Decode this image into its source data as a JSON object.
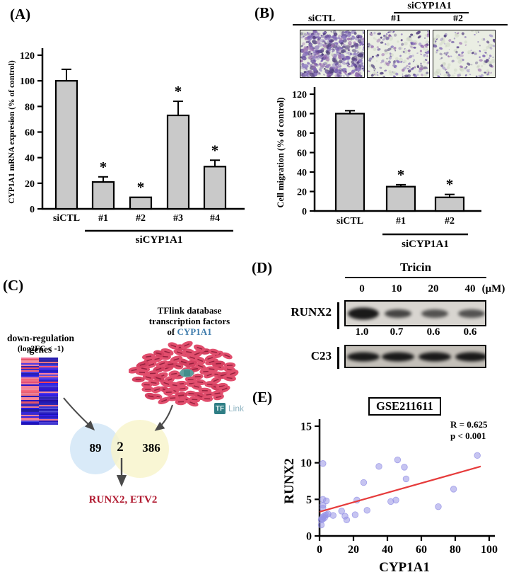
{
  "figure": {
    "panel_a": {
      "tag": "(A)",
      "chart_data": {
        "type": "bar",
        "categories": [
          "siCTL",
          "#1",
          "#2",
          "#3",
          "#4"
        ],
        "values": [
          100,
          21,
          9,
          73,
          33
        ],
        "errors": [
          9,
          4,
          0,
          11,
          5
        ],
        "significance": [
          "",
          "*",
          "*",
          "*",
          "*"
        ],
        "ylabel": "CYP1A1 mRNA expresion (% of control)",
        "ylim": [
          0,
          120
        ],
        "ytick_step": 20,
        "group_label": "siCYP1A1",
        "group_span": [
          1,
          4
        ],
        "bar_color": "#c9c9c9"
      }
    },
    "panel_b": {
      "tag": "(B)",
      "migration_images": {
        "group_label": "siCYP1A1",
        "columns": [
          "siCTL",
          "#1",
          "#2"
        ],
        "dot_counts": [
          430,
          155,
          95
        ],
        "background": "#eaeee3"
      },
      "chart_data": {
        "type": "bar",
        "categories": [
          "siCTL",
          "#1",
          "#2"
        ],
        "values": [
          100,
          25,
          14
        ],
        "errors": [
          3,
          2,
          3
        ],
        "significance": [
          "",
          "*",
          "*"
        ],
        "ylabel": "Cell migration (% of control)",
        "ylim": [
          0,
          120
        ],
        "ytick_step": 20,
        "group_label": "siCYP1A1",
        "group_span": [
          1,
          2
        ],
        "bar_color": "#c9c9c9"
      }
    },
    "panel_c": {
      "tag": "(C)",
      "heatmap": {
        "title": "down-regulation genes",
        "subtitle": "(log2FC < -1)",
        "rows": 47
      },
      "network": {
        "title_line1": "TFlink database",
        "title_line2": "transcription factors",
        "title_line3_prefix": "of ",
        "gene": "CYP1A1",
        "gene_color": "#3f7cac",
        "node_count": 95,
        "node_color": "#e14e6d"
      },
      "tflink_logo": {
        "tf": "TF",
        "link": "Link"
      },
      "venn": {
        "left_value": "89",
        "overlap_value": "2",
        "right_value": "386",
        "left_color": "#d9eaf8",
        "right_color": "#f8f4cb"
      },
      "result_genes": "RUNX2, ETV2",
      "result_color": "#b11a30"
    },
    "panel_d": {
      "tag": "(D)",
      "treatment": "Tricin",
      "doses": [
        "0",
        "10",
        "20",
        "40"
      ],
      "dose_unit": "(μM)",
      "blots": [
        {
          "label": "RUNX2",
          "quant": [
            "1.0",
            "0.7",
            "0.6",
            "0.6"
          ],
          "band_intensities": [
            1.0,
            0.7,
            0.6,
            0.6
          ]
        },
        {
          "label": "C23",
          "band_intensities": [
            1,
            1,
            1,
            1
          ]
        }
      ]
    },
    "panel_e": {
      "tag": "(E)",
      "dataset": "GSE211611",
      "r_text": "R = 0.625",
      "p_text": "p < 0.001",
      "chart_data": {
        "type": "scatter",
        "xlabel": "CYP1A1",
        "ylabel": "RUNX2",
        "xlim": [
          0,
          100
        ],
        "ylim": [
          0,
          15
        ],
        "xticks": [
          0,
          20,
          40,
          60,
          80,
          100
        ],
        "yticks": [
          0,
          5,
          10,
          15
        ],
        "points": [
          [
            1,
            1.5
          ],
          [
            1,
            2.2
          ],
          [
            1.5,
            2.4
          ],
          [
            2,
            2.3
          ],
          [
            2,
            2.6
          ],
          [
            3,
            2.5
          ],
          [
            3,
            2.8
          ],
          [
            4,
            2.9
          ],
          [
            5,
            3.0
          ],
          [
            8,
            2.8
          ],
          [
            2,
            3.8
          ],
          [
            2,
            4.2
          ],
          [
            2,
            5.0
          ],
          [
            4,
            4.8
          ],
          [
            2,
            9.9
          ],
          [
            13,
            3.4
          ],
          [
            15,
            2.7
          ],
          [
            16,
            2.2
          ],
          [
            21,
            2.9
          ],
          [
            22,
            4.9
          ],
          [
            26,
            7.3
          ],
          [
            28,
            3.5
          ],
          [
            35,
            9.5
          ],
          [
            42,
            4.7
          ],
          [
            45,
            4.9
          ],
          [
            46,
            10.4
          ],
          [
            50,
            9.4
          ],
          [
            51,
            7.8
          ],
          [
            70,
            4.0
          ],
          [
            79,
            6.4
          ],
          [
            93,
            11.0
          ]
        ],
        "trend_line": {
          "x_start": 0,
          "y_start": 3.3,
          "x_end": 95,
          "y_end": 9.5,
          "color": "#e63b3b"
        },
        "point_color": "#9794e6"
      }
    }
  }
}
